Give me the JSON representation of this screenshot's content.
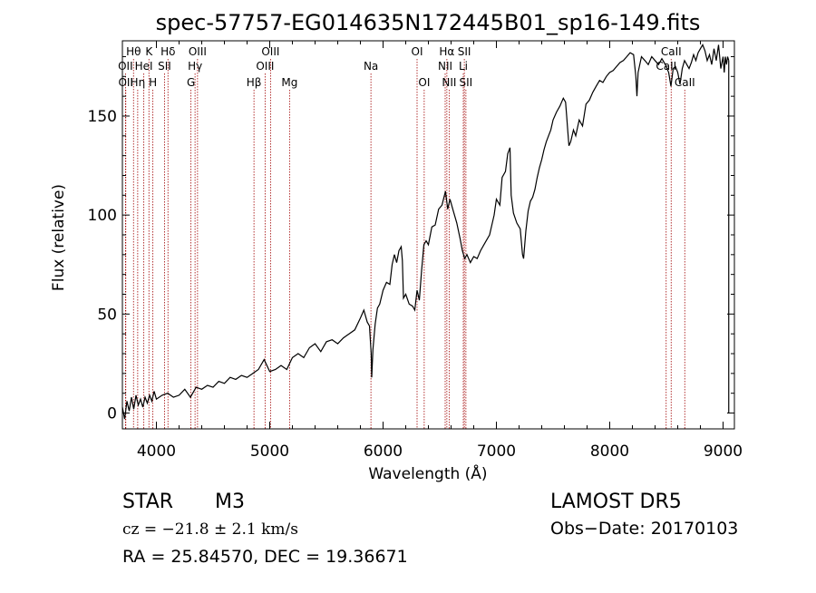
{
  "chart_data": {
    "type": "line",
    "title": "spec-57757-EG014635N172445B01_sp16-149.fits",
    "xlabel": "Wavelength (Å)",
    "ylabel": "Flux (relative)",
    "xlim": [
      3700,
      9100
    ],
    "ylim": [
      -8,
      188
    ],
    "xticks": [
      4000,
      5000,
      6000,
      7000,
      8000,
      9000
    ],
    "yticks": [
      0,
      50,
      100,
      150
    ],
    "series": [
      {
        "points": [
          [
            3700,
            3
          ],
          [
            3720,
            -3
          ],
          [
            3740,
            6
          ],
          [
            3760,
            1
          ],
          [
            3780,
            8
          ],
          [
            3800,
            2
          ],
          [
            3820,
            9
          ],
          [
            3840,
            4
          ],
          [
            3860,
            7
          ],
          [
            3880,
            3
          ],
          [
            3900,
            8
          ],
          [
            3920,
            5
          ],
          [
            3940,
            9
          ],
          [
            3960,
            6
          ],
          [
            3980,
            11
          ],
          [
            4000,
            7
          ],
          [
            4050,
            9
          ],
          [
            4100,
            10
          ],
          [
            4150,
            8
          ],
          [
            4200,
            9
          ],
          [
            4250,
            12
          ],
          [
            4300,
            8
          ],
          [
            4350,
            13
          ],
          [
            4400,
            12
          ],
          [
            4450,
            14
          ],
          [
            4500,
            13
          ],
          [
            4550,
            16
          ],
          [
            4600,
            15
          ],
          [
            4650,
            18
          ],
          [
            4700,
            17
          ],
          [
            4750,
            19
          ],
          [
            4800,
            18
          ],
          [
            4850,
            20
          ],
          [
            4900,
            22
          ],
          [
            4950,
            27
          ],
          [
            5000,
            21
          ],
          [
            5050,
            22
          ],
          [
            5100,
            24
          ],
          [
            5150,
            22
          ],
          [
            5200,
            28
          ],
          [
            5250,
            30
          ],
          [
            5300,
            28
          ],
          [
            5350,
            33
          ],
          [
            5400,
            35
          ],
          [
            5450,
            31
          ],
          [
            5500,
            36
          ],
          [
            5550,
            37
          ],
          [
            5600,
            35
          ],
          [
            5650,
            38
          ],
          [
            5700,
            40
          ],
          [
            5750,
            42
          ],
          [
            5800,
            48
          ],
          [
            5830,
            52
          ],
          [
            5860,
            46
          ],
          [
            5880,
            44
          ],
          [
            5895,
            30
          ],
          [
            5900,
            18
          ],
          [
            5910,
            32
          ],
          [
            5930,
            45
          ],
          [
            5950,
            53
          ],
          [
            5970,
            55
          ],
          [
            6000,
            62
          ],
          [
            6030,
            66
          ],
          [
            6060,
            65
          ],
          [
            6080,
            75
          ],
          [
            6100,
            80
          ],
          [
            6120,
            76
          ],
          [
            6140,
            82
          ],
          [
            6160,
            84
          ],
          [
            6170,
            77
          ],
          [
            6180,
            58
          ],
          [
            6200,
            60
          ],
          [
            6230,
            55
          ],
          [
            6260,
            54
          ],
          [
            6280,
            52
          ],
          [
            6300,
            62
          ],
          [
            6320,
            57
          ],
          [
            6340,
            72
          ],
          [
            6360,
            85
          ],
          [
            6380,
            87
          ],
          [
            6400,
            85
          ],
          [
            6430,
            94
          ],
          [
            6460,
            95
          ],
          [
            6490,
            103
          ],
          [
            6520,
            105
          ],
          [
            6550,
            112
          ],
          [
            6570,
            103
          ],
          [
            6590,
            108
          ],
          [
            6620,
            102
          ],
          [
            6650,
            96
          ],
          [
            6680,
            88
          ],
          [
            6700,
            82
          ],
          [
            6720,
            78
          ],
          [
            6740,
            80
          ],
          [
            6770,
            76
          ],
          [
            6800,
            79
          ],
          [
            6830,
            78
          ],
          [
            6860,
            82
          ],
          [
            6900,
            86
          ],
          [
            6940,
            90
          ],
          [
            6980,
            100
          ],
          [
            7000,
            108
          ],
          [
            7030,
            105
          ],
          [
            7050,
            119
          ],
          [
            7080,
            122
          ],
          [
            7100,
            131
          ],
          [
            7120,
            134
          ],
          [
            7130,
            110
          ],
          [
            7150,
            101
          ],
          [
            7180,
            96
          ],
          [
            7210,
            93
          ],
          [
            7230,
            80
          ],
          [
            7240,
            78
          ],
          [
            7260,
            92
          ],
          [
            7280,
            102
          ],
          [
            7300,
            107
          ],
          [
            7320,
            109
          ],
          [
            7340,
            113
          ],
          [
            7360,
            119
          ],
          [
            7380,
            124
          ],
          [
            7400,
            128
          ],
          [
            7420,
            133
          ],
          [
            7440,
            137
          ],
          [
            7460,
            140
          ],
          [
            7480,
            143
          ],
          [
            7500,
            148
          ],
          [
            7530,
            152
          ],
          [
            7560,
            155
          ],
          [
            7590,
            159
          ],
          [
            7610,
            157
          ],
          [
            7620,
            150
          ],
          [
            7630,
            142
          ],
          [
            7640,
            135
          ],
          [
            7655,
            137
          ],
          [
            7680,
            143
          ],
          [
            7700,
            140
          ],
          [
            7730,
            148
          ],
          [
            7760,
            145
          ],
          [
            7790,
            156
          ],
          [
            7820,
            158
          ],
          [
            7850,
            162
          ],
          [
            7880,
            165
          ],
          [
            7910,
            168
          ],
          [
            7940,
            167
          ],
          [
            7970,
            170
          ],
          [
            8000,
            172
          ],
          [
            8030,
            173
          ],
          [
            8060,
            175
          ],
          [
            8090,
            177
          ],
          [
            8120,
            178
          ],
          [
            8150,
            180
          ],
          [
            8180,
            182
          ],
          [
            8210,
            181
          ],
          [
            8230,
            170
          ],
          [
            8240,
            160
          ],
          [
            8250,
            172
          ],
          [
            8280,
            180
          ],
          [
            8310,
            178
          ],
          [
            8340,
            176
          ],
          [
            8370,
            180
          ],
          [
            8400,
            178
          ],
          [
            8430,
            176
          ],
          [
            8460,
            179
          ],
          [
            8490,
            176
          ],
          [
            8520,
            172
          ],
          [
            8540,
            165
          ],
          [
            8560,
            174
          ],
          [
            8580,
            175
          ],
          [
            8600,
            172
          ],
          [
            8620,
            166
          ],
          [
            8640,
            174
          ],
          [
            8660,
            178
          ],
          [
            8680,
            176
          ],
          [
            8700,
            174
          ],
          [
            8720,
            177
          ],
          [
            8740,
            181
          ],
          [
            8760,
            178
          ],
          [
            8780,
            182
          ],
          [
            8800,
            184
          ],
          [
            8820,
            186
          ],
          [
            8840,
            183
          ],
          [
            8860,
            178
          ],
          [
            8880,
            181
          ],
          [
            8900,
            176
          ],
          [
            8920,
            184
          ],
          [
            8940,
            178
          ],
          [
            8960,
            186
          ],
          [
            8980,
            174
          ],
          [
            9000,
            180
          ],
          [
            9010,
            172
          ],
          [
            9020,
            180
          ],
          [
            9030,
            176
          ],
          [
            9040,
            180
          ],
          [
            9050,
            178
          ]
        ]
      }
    ],
    "drop_line": {
      "x": 9050,
      "y_from": 178,
      "y_to": 0
    },
    "spectral_lines": [
      {
        "label": "Hθ",
        "x": 3798,
        "row": 0
      },
      {
        "label": "K",
        "x": 3934,
        "row": 0
      },
      {
        "label": "Hδ",
        "x": 4102,
        "row": 0
      },
      {
        "label": "OIII",
        "x": 4363,
        "row": 0
      },
      {
        "label": "OIII",
        "x": 5007,
        "row": 0
      },
      {
        "label": "OI",
        "x": 6300,
        "row": 0
      },
      {
        "label": "Hα",
        "x": 6563,
        "row": 0
      },
      {
        "label": "SII",
        "x": 6717,
        "row": 0
      },
      {
        "label": "CaII",
        "x": 8542,
        "row": 0
      },
      {
        "label": "OII",
        "x": 3727,
        "row": 1
      },
      {
        "label": "HeI",
        "x": 3889,
        "row": 1
      },
      {
        "label": "SII",
        "x": 4072,
        "row": 1
      },
      {
        "label": "Hγ",
        "x": 4341,
        "row": 1
      },
      {
        "label": "OIII",
        "x": 4959,
        "row": 1
      },
      {
        "label": "Na",
        "x": 5893,
        "row": 1
      },
      {
        "label": "NII",
        "x": 6548,
        "row": 1
      },
      {
        "label": "Li",
        "x": 6708,
        "row": 1
      },
      {
        "label": "CaII",
        "x": 8498,
        "row": 1
      },
      {
        "label": "OII",
        "x": 3730,
        "row": 2
      },
      {
        "label": "Hη",
        "x": 3835,
        "row": 2
      },
      {
        "label": "H",
        "x": 3969,
        "row": 2
      },
      {
        "label": "G",
        "x": 4305,
        "row": 2
      },
      {
        "label": "Hβ",
        "x": 4861,
        "row": 2
      },
      {
        "label": "Mg",
        "x": 5175,
        "row": 2
      },
      {
        "label": "OI",
        "x": 6363,
        "row": 2
      },
      {
        "label": "NII",
        "x": 6583,
        "row": 2
      },
      {
        "label": "SII",
        "x": 6731,
        "row": 2
      },
      {
        "label": "CaII",
        "x": 8662,
        "row": 2
      }
    ],
    "colors": {
      "line": "#000000",
      "marker_line": "#a00000"
    }
  },
  "info": {
    "class": "STAR",
    "subclass": "M3",
    "survey": "LAMOST DR5",
    "cz": "cz = −21.8 ± 2.1 km/s",
    "obs_date": "Obs−Date: 20170103",
    "coords": "RA =  25.84570, DEC =  19.36671"
  }
}
